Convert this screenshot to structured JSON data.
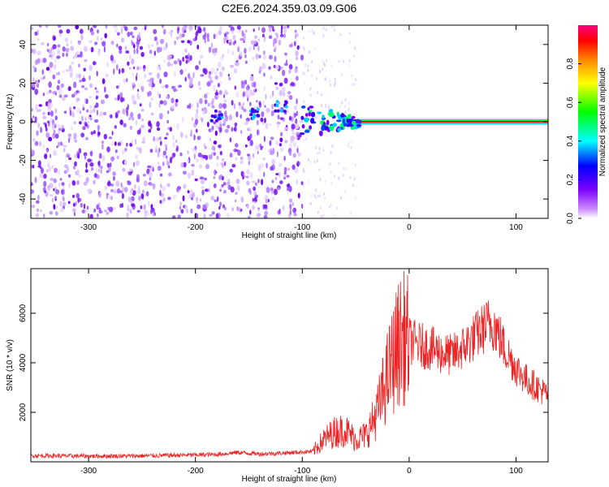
{
  "figure": {
    "title": "C2E6.2024.359.03.09.G06"
  },
  "chart_data": [
    {
      "type": "heatmap",
      "xlabel": "Height of straight line (km)",
      "ylabel": "Frequency (Hz)",
      "xlim": [
        -354,
        130
      ],
      "ylim": [
        -50,
        50
      ],
      "xticks": [
        -300,
        -200,
        -100,
        0,
        100
      ],
      "yticks": [
        -40,
        -20,
        0,
        20,
        40
      ],
      "grid": false,
      "colorbar": {
        "label": "Normalized spectral amplitude",
        "range": [
          0,
          1
        ],
        "ticks": [
          "0.0",
          "0.2",
          "0.4",
          "0.6",
          "0.8"
        ],
        "colors": [
          "#ffffff",
          "#cc88ff",
          "#7a00ff",
          "#0000ff",
          "#00ffff",
          "#00ff00",
          "#ffff00",
          "#ff8800",
          "#ff0000",
          "#ff0080"
        ]
      },
      "features": {
        "noise_region_x": [
          -354,
          -100
        ],
        "carrier_line_hz": 0,
        "carrier_start_x": -50,
        "flare_x": [
          -100,
          -50
        ]
      }
    },
    {
      "type": "line",
      "xlabel": "Height of straight line (km)",
      "ylabel": "SNR (10 * v/v)",
      "xlim": [
        -354,
        130
      ],
      "ylim": [
        0,
        7800
      ],
      "xticks": [
        -300,
        -200,
        -100,
        0,
        100
      ],
      "yticks": [
        2000,
        4000,
        6000
      ],
      "grid": false,
      "series": [
        {
          "color": "#ee2222",
          "x": [
            -354,
            -300,
            -250,
            -200,
            -180,
            -160,
            -140,
            -120,
            -100,
            -90,
            -80,
            -70,
            -60,
            -50,
            -40,
            -30,
            -20,
            -10,
            -5,
            0,
            10,
            20,
            30,
            40,
            50,
            60,
            70,
            75,
            80,
            90,
            100,
            110,
            120,
            130
          ],
          "y": [
            250,
            230,
            240,
            280,
            300,
            380,
            320,
            350,
            400,
            420,
            900,
            1200,
            1300,
            900,
            1100,
            2000,
            3500,
            4800,
            5000,
            4900,
            4700,
            4600,
            4400,
            4300,
            4600,
            5000,
            5400,
            5600,
            5500,
            4500,
            3800,
            3300,
            3000,
            2700
          ]
        }
      ]
    }
  ]
}
